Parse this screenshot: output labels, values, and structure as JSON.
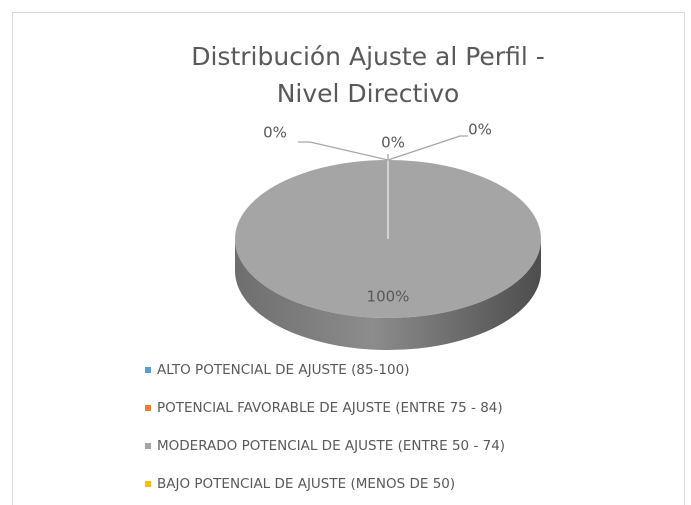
{
  "chart_data": {
    "type": "pie3d",
    "title": [
      "Distribución Ajuste al Perfil -",
      "Nivel Directivo"
    ],
    "categories": [
      "ALTO POTENCIAL DE AJUSTE (85-100)",
      "POTENCIAL FAVORABLE DE AJUSTE (ENTRE 75 - 84)",
      "MODERADO POTENCIAL DE AJUSTE (ENTRE 50 - 74)",
      "BAJO POTENCIAL DE AJUSTE (MENOS DE 50)"
    ],
    "values": [
      0,
      0,
      100,
      0
    ],
    "value_labels": [
      "0%",
      "0%",
      "100%",
      "0%"
    ],
    "colors": [
      "#5b9bd5",
      "#ed7d31",
      "#a5a5a5",
      "#ffc000"
    ],
    "legend": "bottom"
  }
}
